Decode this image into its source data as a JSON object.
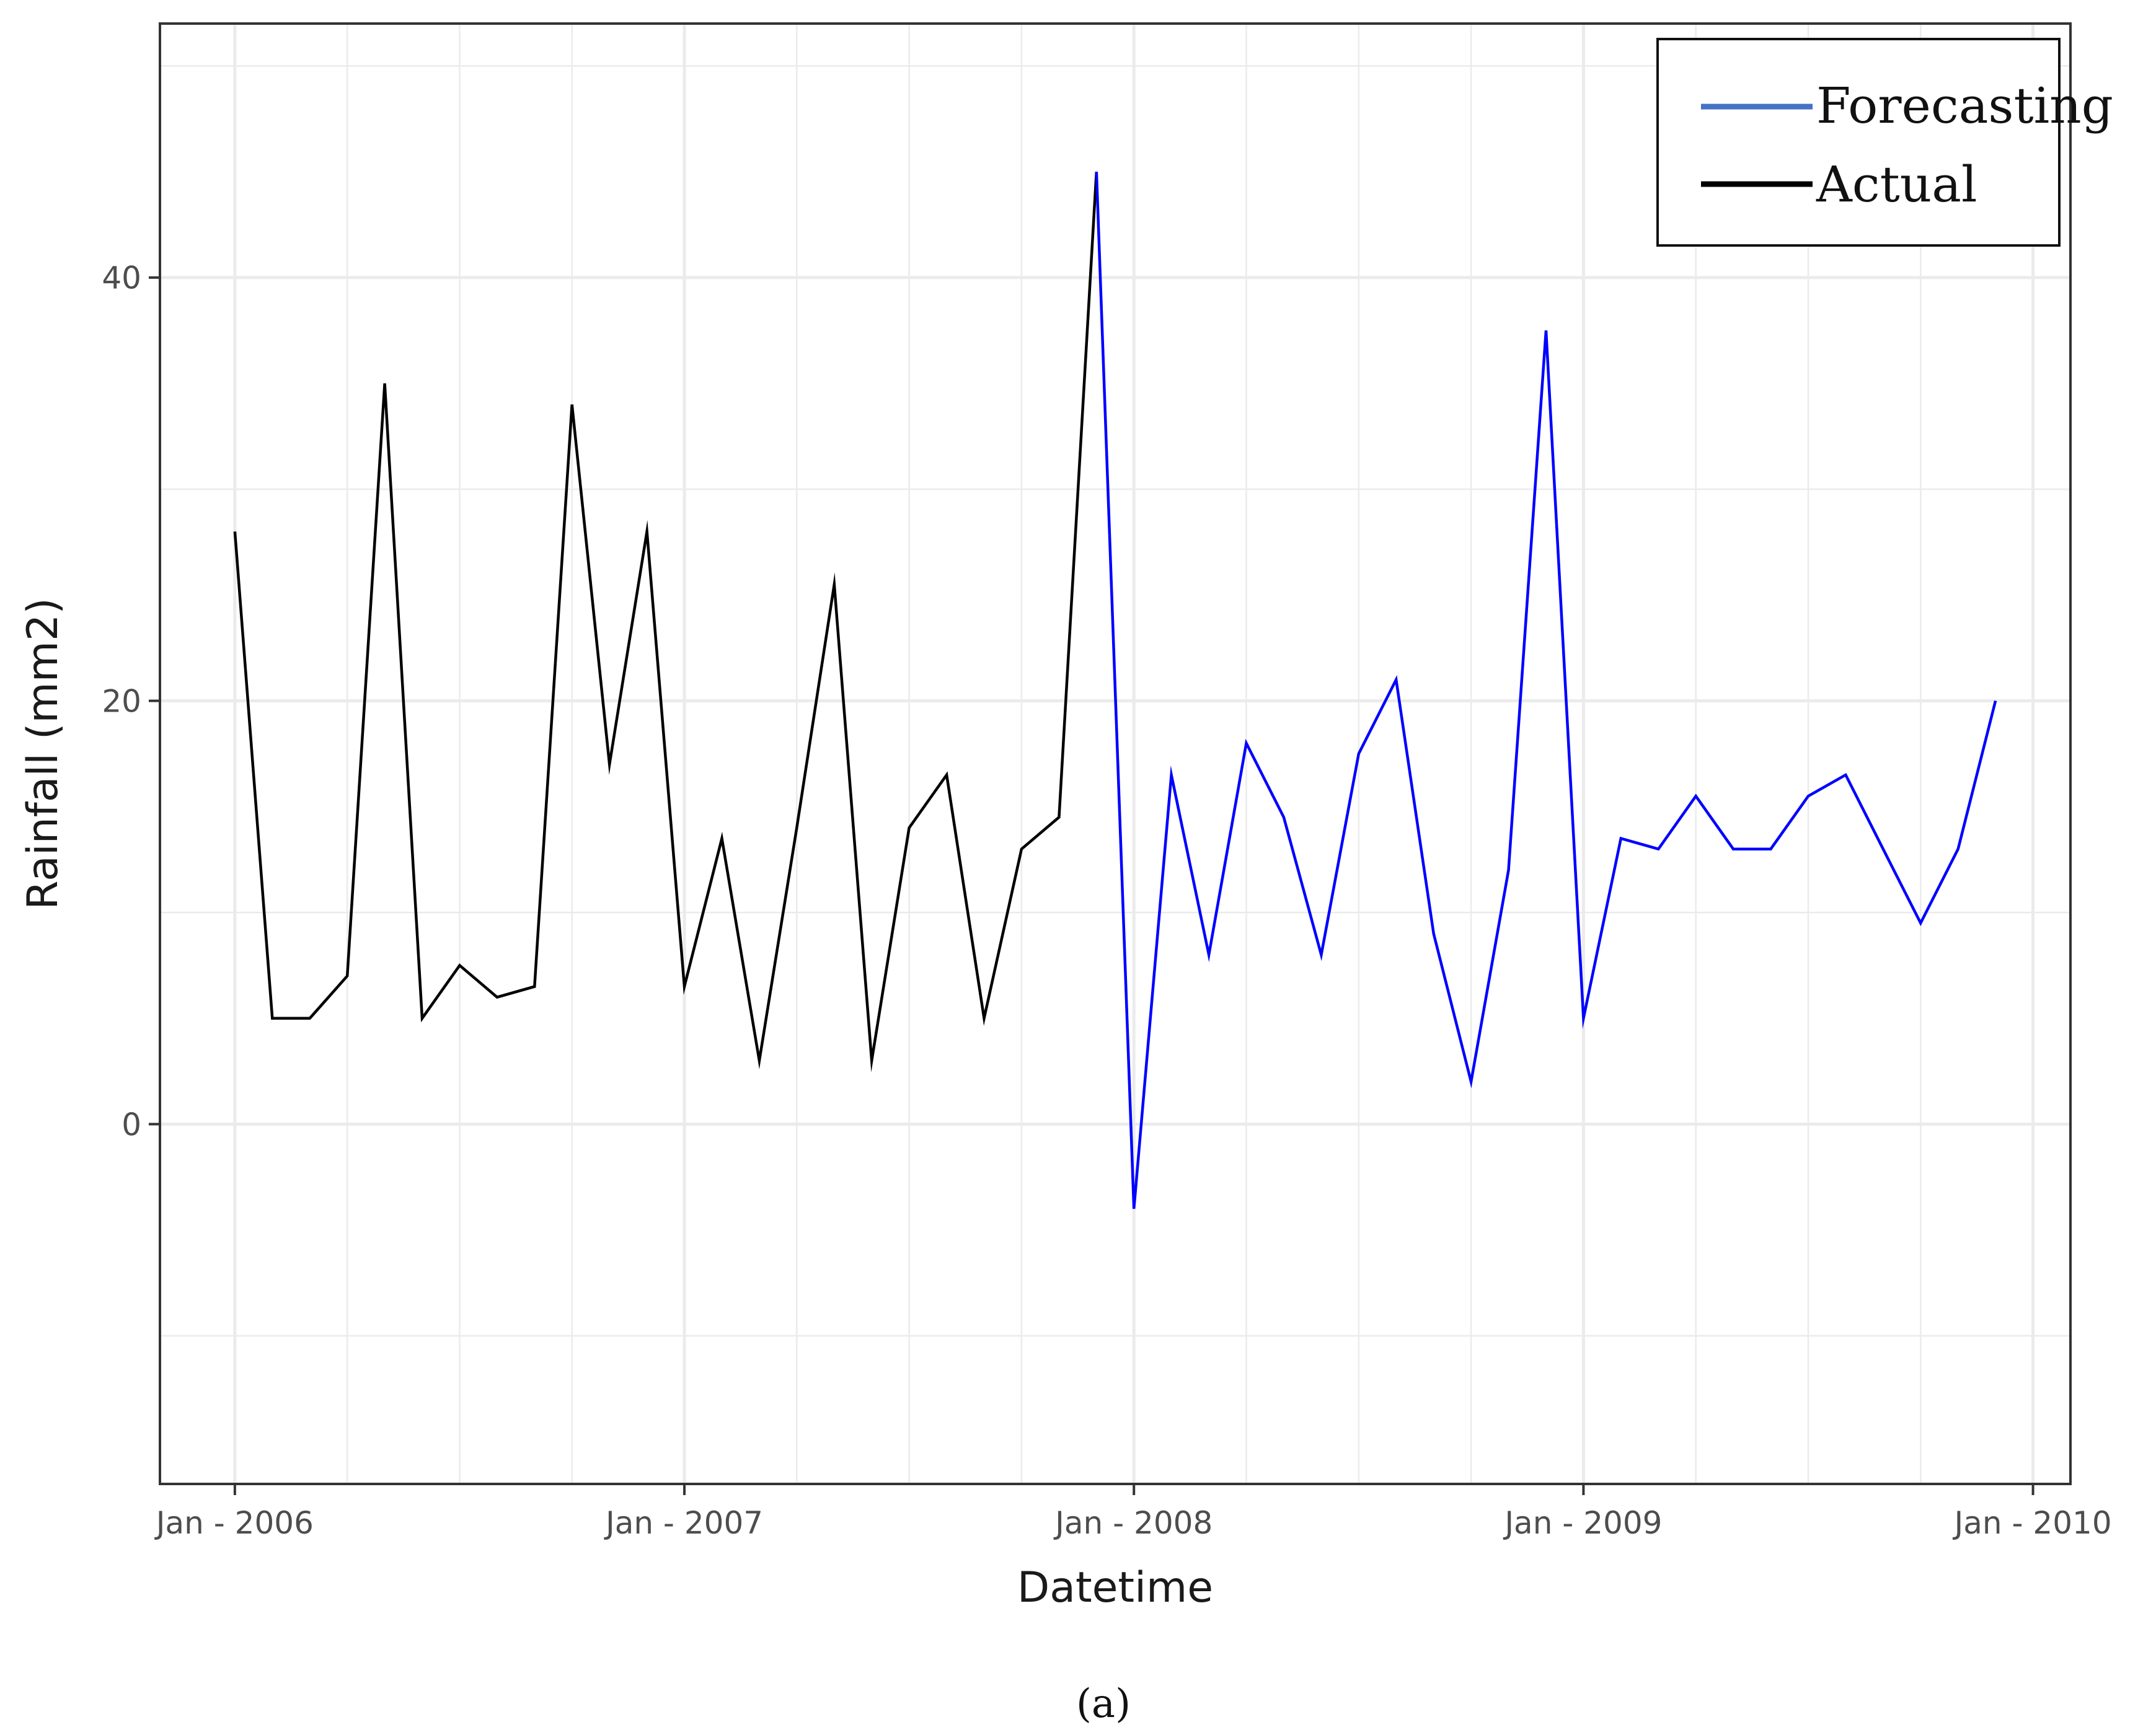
{
  "chart_data": {
    "type": "line",
    "title": "",
    "xlabel": "Datetime",
    "ylabel": "Rainfall (mm2)",
    "x_ticks": [
      "Jan - 2006",
      "Jan - 2007",
      "Jan - 2008",
      "Jan - 2009",
      "Jan - 2010"
    ],
    "y_ticks": [
      0,
      20,
      40
    ],
    "ylim": [
      -17,
      52
    ],
    "xlim": [
      "2005-11",
      "2010-02"
    ],
    "grid": true,
    "legend": {
      "position": "top-right"
    },
    "series": [
      {
        "name": "Actual",
        "color": "#000000",
        "points": [
          [
            "2006-01",
            28
          ],
          [
            "2006-02",
            5
          ],
          [
            "2006-03",
            5
          ],
          [
            "2006-04",
            7
          ],
          [
            "2006-05",
            35
          ],
          [
            "2006-06",
            5
          ],
          [
            "2006-07",
            7.5
          ],
          [
            "2006-08",
            6
          ],
          [
            "2006-09",
            6.5
          ],
          [
            "2006-10",
            34
          ],
          [
            "2006-11",
            17
          ],
          [
            "2006-12",
            28
          ],
          [
            "2007-01",
            6.5
          ],
          [
            "2007-02",
            13.5
          ],
          [
            "2007-03",
            3
          ],
          [
            "2007-04",
            14
          ],
          [
            "2007-05",
            25.5
          ],
          [
            "2007-06",
            3
          ],
          [
            "2007-07",
            14
          ],
          [
            "2007-08",
            16.5
          ],
          [
            "2007-09",
            5
          ],
          [
            "2007-10",
            13
          ],
          [
            "2007-11",
            14.5
          ],
          [
            "2007-12",
            45
          ]
        ]
      },
      {
        "name": "Forecasting",
        "color": "#0000ff",
        "legend_color": "#4472c4",
        "points": [
          [
            "2007-12",
            45
          ],
          [
            "2008-01",
            -4
          ],
          [
            "2008-02",
            16.5
          ],
          [
            "2008-03",
            8
          ],
          [
            "2008-04",
            18
          ],
          [
            "2008-05",
            14.5
          ],
          [
            "2008-06",
            8
          ],
          [
            "2008-07",
            17.5
          ],
          [
            "2008-08",
            21
          ],
          [
            "2008-09",
            9
          ],
          [
            "2008-10",
            2
          ],
          [
            "2008-11",
            12
          ],
          [
            "2008-12",
            37.5
          ],
          [
            "2009-01",
            5
          ],
          [
            "2009-02",
            13.5
          ],
          [
            "2009-03",
            13
          ],
          [
            "2009-04",
            15.5
          ],
          [
            "2009-05",
            13
          ],
          [
            "2009-06",
            13
          ],
          [
            "2009-07",
            15.5
          ],
          [
            "2009-08",
            16.5
          ],
          [
            "2009-09",
            13
          ],
          [
            "2009-10",
            9.5
          ],
          [
            "2009-11",
            13
          ],
          [
            "2009-12",
            20
          ]
        ]
      }
    ],
    "caption": "(a)"
  }
}
